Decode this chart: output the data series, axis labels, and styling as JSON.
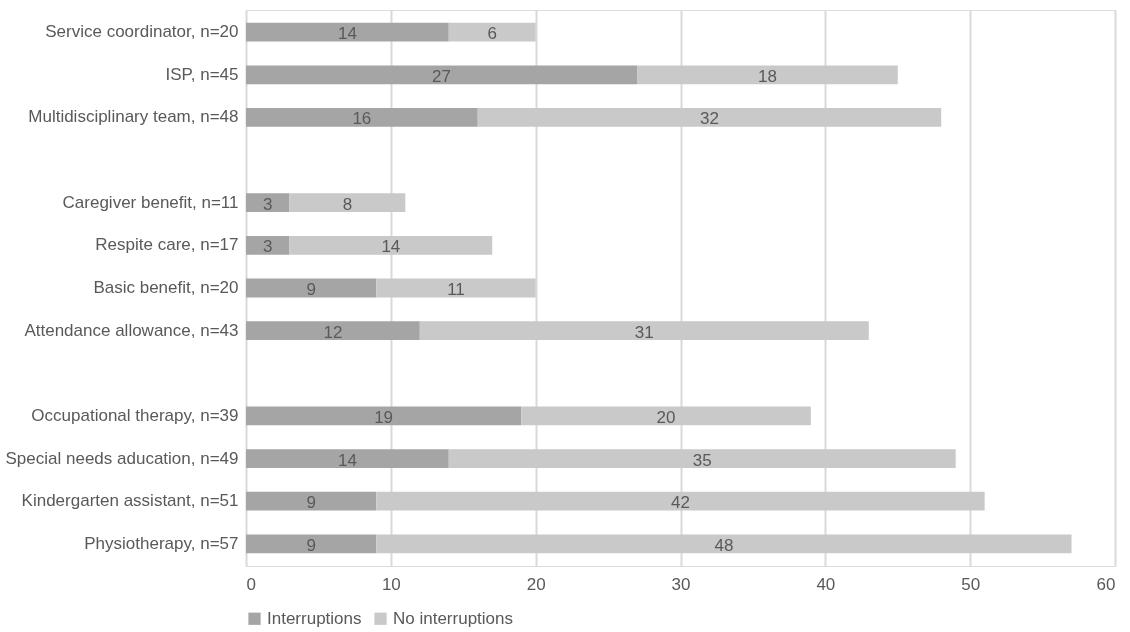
{
  "chart_data": {
    "type": "bar",
    "orientation": "horizontal",
    "stacked": true,
    "categories": [
      "Service coordinator, n=20",
      "ISP, n=45",
      "Multidisciplinary team, n=48",
      null,
      "Caregiver benefit, n=11",
      "Respite care, n=17",
      "Basic benefit, n=20",
      "Attendance allowance, n=43",
      null,
      "Occupational therapy, n=39",
      "Special needs aducation, n=49",
      "Kindergarten assistant, n=51",
      "Physiotherapy, n=57"
    ],
    "series": [
      {
        "name": "Interruptions",
        "color": "#a5a5a5",
        "values": [
          14,
          27,
          16,
          null,
          3,
          3,
          9,
          12,
          null,
          19,
          14,
          9,
          9
        ]
      },
      {
        "name": "No interruptions",
        "color": "#c9c9c9",
        "values": [
          6,
          18,
          32,
          null,
          8,
          14,
          11,
          31,
          null,
          20,
          35,
          42,
          48
        ]
      }
    ],
    "xlim": [
      0,
      60
    ],
    "xticks": [
      0,
      10,
      20,
      30,
      40,
      50,
      60
    ],
    "grid": "x",
    "legend": "bottom",
    "data_labels": true
  }
}
